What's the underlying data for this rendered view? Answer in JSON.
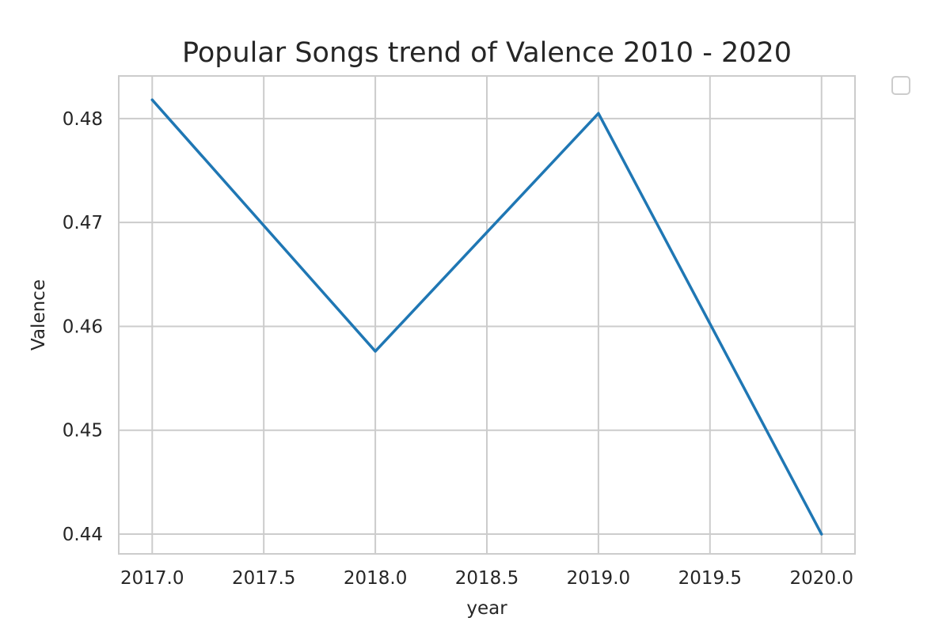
{
  "chart_data": {
    "type": "line",
    "title": "Popular Songs trend of Valence 2010 - 2020",
    "xlabel": "year",
    "ylabel": "Valence",
    "x": [
      2017.0,
      2018.0,
      2019.0,
      2020.0
    ],
    "series": [
      {
        "values": [
          0.4818,
          0.4576,
          0.4805,
          0.44
        ]
      }
    ],
    "xlim": [
      2016.85,
      2020.15
    ],
    "ylim": [
      0.4381,
      0.4841
    ],
    "x_ticks": [
      "2017.0",
      "2017.5",
      "2018.0",
      "2018.5",
      "2019.0",
      "2019.5",
      "2020.0"
    ],
    "y_ticks": [
      "0.44",
      "0.45",
      "0.46",
      "0.47",
      "0.48"
    ],
    "grid": true,
    "legend": "empty box at top-right outside plot",
    "colors": {
      "line": "#1f77b4",
      "grid": "#cccccc",
      "spine": "#cccccc",
      "text": "#262626"
    }
  }
}
